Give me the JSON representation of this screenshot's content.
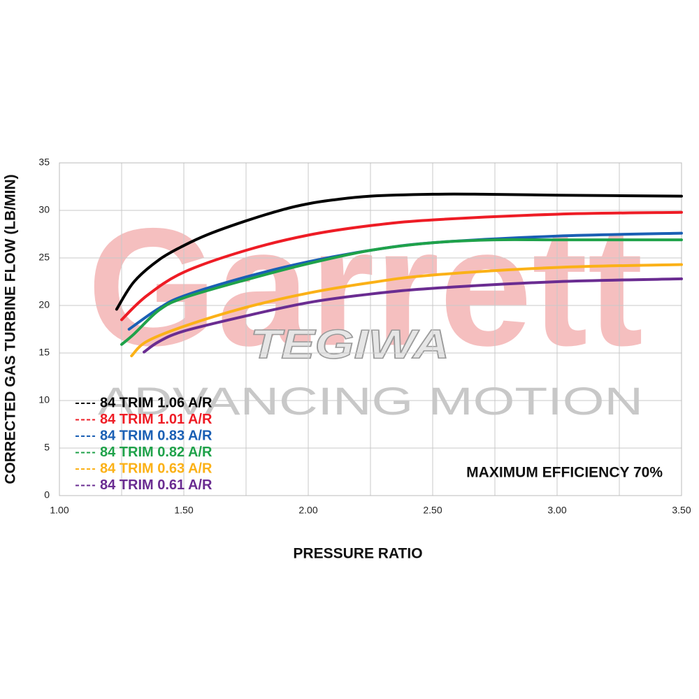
{
  "chart_data": {
    "type": "line",
    "xlabel": "PRESSURE RATIO",
    "ylabel": "CORRECTED GAS TURBINE FLOW (LB/MIN)",
    "annotation": "MAXIMUM EFFICIENCY 70%",
    "watermarks": [
      "Garrett",
      "ADVANCING MOTION",
      "TEGIWA"
    ],
    "xlim": [
      1.0,
      3.5
    ],
    "ylim": [
      0,
      35
    ],
    "xticks": [
      {
        "value": 1.0,
        "label": "1.00"
      },
      {
        "value": 1.5,
        "label": "1.50"
      },
      {
        "value": 2.0,
        "label": "2.00"
      },
      {
        "value": 2.5,
        "label": "2.50"
      },
      {
        "value": 3.0,
        "label": "3.00"
      },
      {
        "value": 3.5,
        "label": "3.50"
      }
    ],
    "xgrid": [
      1.25,
      1.75,
      2.25,
      2.75,
      3.25
    ],
    "yticks": [
      0,
      5,
      10,
      15,
      20,
      25,
      30,
      35
    ],
    "grid": true,
    "legend": "lower left",
    "series": [
      {
        "name": "84 TRIM 1.06 A/R",
        "color": "#000000",
        "x": [
          1.23,
          1.3,
          1.4,
          1.5,
          1.6,
          1.75,
          1.9,
          2.0,
          2.1,
          2.25,
          2.5,
          2.7,
          3.0,
          3.5
        ],
        "values": [
          19.6,
          22.5,
          24.8,
          26.3,
          27.5,
          28.9,
          30.1,
          30.7,
          31.1,
          31.5,
          31.7,
          31.7,
          31.6,
          31.5
        ]
      },
      {
        "name": "84 TRIM 1.01 A/R",
        "color": "#ee1c25",
        "x": [
          1.25,
          1.35,
          1.5,
          1.75,
          2.0,
          2.25,
          2.5,
          3.0,
          3.5
        ],
        "values": [
          18.5,
          21.0,
          23.5,
          25.8,
          27.4,
          28.4,
          29.0,
          29.6,
          29.8
        ]
      },
      {
        "name": "84 TRIM 0.83 A/R",
        "color": "#1a5fb4",
        "x": [
          1.28,
          1.4,
          1.5,
          1.75,
          2.0,
          2.25,
          2.5,
          3.0,
          3.5
        ],
        "values": [
          17.5,
          19.7,
          21.0,
          23.0,
          24.6,
          25.8,
          26.6,
          27.3,
          27.6
        ]
      },
      {
        "name": "84 TRIM 0.82 A/R",
        "color": "#1fa24a",
        "x": [
          1.25,
          1.3,
          1.4,
          1.5,
          1.75,
          2.0,
          2.25,
          2.5,
          2.75,
          3.0,
          3.5
        ],
        "values": [
          15.9,
          17.0,
          19.5,
          20.8,
          22.7,
          24.4,
          25.8,
          26.6,
          26.9,
          26.9,
          26.9
        ]
      },
      {
        "name": "84 TRIM 0.63 A/R",
        "color": "#fbb117",
        "x": [
          1.29,
          1.35,
          1.5,
          1.75,
          2.0,
          2.25,
          2.5,
          3.0,
          3.5
        ],
        "values": [
          14.7,
          16.2,
          17.8,
          19.8,
          21.3,
          22.4,
          23.2,
          24.0,
          24.3
        ]
      },
      {
        "name": "84 TRIM 0.61 A/R",
        "color": "#6a2c91",
        "x": [
          1.34,
          1.4,
          1.5,
          1.75,
          2.0,
          2.25,
          2.5,
          3.0,
          3.5
        ],
        "values": [
          15.1,
          16.2,
          17.3,
          18.9,
          20.3,
          21.2,
          21.8,
          22.5,
          22.8
        ]
      }
    ]
  }
}
